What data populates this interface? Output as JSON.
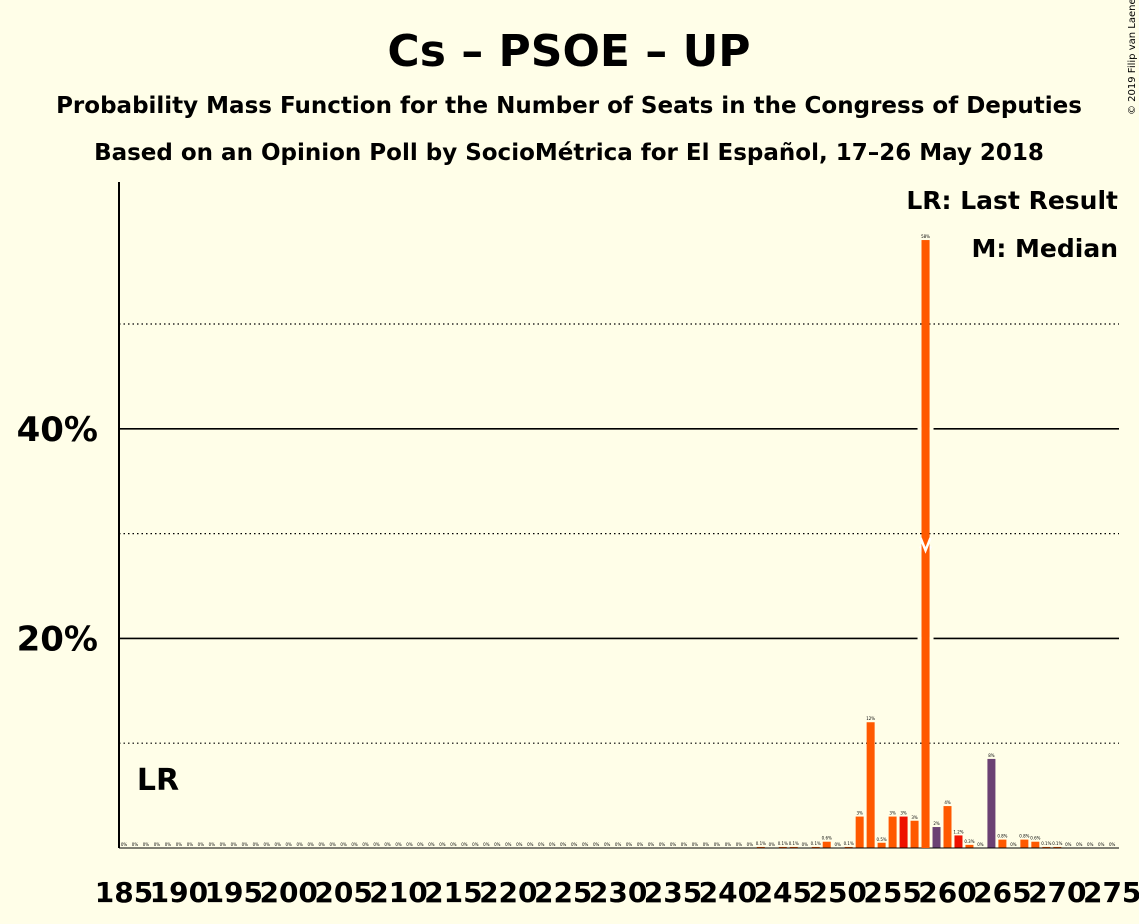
{
  "title": "Cs – PSOE – UP",
  "subtitle1": "Probability Mass Function for the Number of Seats in the Congress of Deputies",
  "subtitle2": "Based on an Opinion Poll by SocioMétrica for El Español, 17–26 May 2018",
  "copyright": "© 2019 Filip van Laenen",
  "legend": {
    "last_result": "LR: Last Result",
    "median": "M: Median"
  },
  "lr_label": "LR",
  "colors": {
    "background": "#FFFEE8",
    "cs": "#FF5900",
    "psoe": "#EE1100",
    "up": "#6B4173"
  },
  "chart_data": {
    "type": "bar",
    "x_range": [
      185,
      275
    ],
    "ylim": [
      0,
      60
    ],
    "y_ticks": [
      "20%",
      "40%"
    ],
    "x_ticks": [
      "185",
      "190",
      "195",
      "200",
      "205",
      "210",
      "215",
      "220",
      "225",
      "230",
      "235",
      "240",
      "245",
      "250",
      "255",
      "260",
      "265",
      "270",
      "275"
    ],
    "last_result": 186,
    "median": 258,
    "values": [
      {
        "seats": 185,
        "value": 0,
        "label": "0%"
      },
      {
        "seats": 186,
        "value": 0,
        "label": "0%"
      },
      {
        "seats": 187,
        "value": 0,
        "label": "0%"
      },
      {
        "seats": 188,
        "value": 0,
        "label": "0%"
      },
      {
        "seats": 189,
        "value": 0,
        "label": "0%"
      },
      {
        "seats": 190,
        "value": 0,
        "label": "0%"
      },
      {
        "seats": 191,
        "value": 0,
        "label": "0%"
      },
      {
        "seats": 192,
        "value": 0,
        "label": "0%"
      },
      {
        "seats": 193,
        "value": 0,
        "label": "0%"
      },
      {
        "seats": 194,
        "value": 0,
        "label": "0%"
      },
      {
        "seats": 195,
        "value": 0,
        "label": "0%"
      },
      {
        "seats": 196,
        "value": 0,
        "label": "0%"
      },
      {
        "seats": 197,
        "value": 0,
        "label": "0%"
      },
      {
        "seats": 198,
        "value": 0,
        "label": "0%"
      },
      {
        "seats": 199,
        "value": 0,
        "label": "0%"
      },
      {
        "seats": 200,
        "value": 0,
        "label": "0%"
      },
      {
        "seats": 201,
        "value": 0,
        "label": "0%"
      },
      {
        "seats": 202,
        "value": 0,
        "label": "0%"
      },
      {
        "seats": 203,
        "value": 0,
        "label": "0%"
      },
      {
        "seats": 204,
        "value": 0,
        "label": "0%"
      },
      {
        "seats": 205,
        "value": 0,
        "label": "0%"
      },
      {
        "seats": 206,
        "value": 0,
        "label": "0%"
      },
      {
        "seats": 207,
        "value": 0,
        "label": "0%"
      },
      {
        "seats": 208,
        "value": 0,
        "label": "0%"
      },
      {
        "seats": 209,
        "value": 0,
        "label": "0%"
      },
      {
        "seats": 210,
        "value": 0,
        "label": "0%"
      },
      {
        "seats": 211,
        "value": 0,
        "label": "0%"
      },
      {
        "seats": 212,
        "value": 0,
        "label": "0%"
      },
      {
        "seats": 213,
        "value": 0,
        "label": "0%"
      },
      {
        "seats": 214,
        "value": 0,
        "label": "0%"
      },
      {
        "seats": 215,
        "value": 0,
        "label": "0%"
      },
      {
        "seats": 216,
        "value": 0,
        "label": "0%"
      },
      {
        "seats": 217,
        "value": 0,
        "label": "0%"
      },
      {
        "seats": 218,
        "value": 0,
        "label": "0%"
      },
      {
        "seats": 219,
        "value": 0,
        "label": "0%"
      },
      {
        "seats": 220,
        "value": 0,
        "label": "0%"
      },
      {
        "seats": 221,
        "value": 0,
        "label": "0%"
      },
      {
        "seats": 222,
        "value": 0,
        "label": "0%"
      },
      {
        "seats": 223,
        "value": 0,
        "label": "0%"
      },
      {
        "seats": 224,
        "value": 0,
        "label": "0%"
      },
      {
        "seats": 225,
        "value": 0,
        "label": "0%"
      },
      {
        "seats": 226,
        "value": 0,
        "label": "0%"
      },
      {
        "seats": 227,
        "value": 0,
        "label": "0%"
      },
      {
        "seats": 228,
        "value": 0,
        "label": "0%"
      },
      {
        "seats": 229,
        "value": 0,
        "label": "0%"
      },
      {
        "seats": 230,
        "value": 0,
        "label": "0%"
      },
      {
        "seats": 231,
        "value": 0,
        "label": "0%"
      },
      {
        "seats": 232,
        "value": 0,
        "label": "0%"
      },
      {
        "seats": 233,
        "value": 0,
        "label": "0%"
      },
      {
        "seats": 234,
        "value": 0,
        "label": "0%"
      },
      {
        "seats": 235,
        "value": 0,
        "label": "0%"
      },
      {
        "seats": 236,
        "value": 0,
        "label": "0%"
      },
      {
        "seats": 237,
        "value": 0,
        "label": "0%"
      },
      {
        "seats": 238,
        "value": 0,
        "label": "0%"
      },
      {
        "seats": 239,
        "value": 0,
        "label": "0%"
      },
      {
        "seats": 240,
        "value": 0,
        "label": "0%"
      },
      {
        "seats": 241,
        "value": 0,
        "label": "0%"
      },
      {
        "seats": 242,
        "value": 0,
        "label": "0%"
      },
      {
        "seats": 243,
        "value": 0.1,
        "label": "0.1%"
      },
      {
        "seats": 244,
        "value": 0,
        "label": "0%"
      },
      {
        "seats": 245,
        "value": 0.1,
        "label": "0.1%"
      },
      {
        "seats": 246,
        "value": 0.1,
        "label": "0.1%"
      },
      {
        "seats": 247,
        "value": 0,
        "label": "0%"
      },
      {
        "seats": 248,
        "value": 0.1,
        "label": "0.1%"
      },
      {
        "seats": 249,
        "value": 0.6,
        "label": "0.6%"
      },
      {
        "seats": 250,
        "value": 0,
        "label": "0%"
      },
      {
        "seats": 251,
        "value": 0.1,
        "label": "0.1%"
      },
      {
        "seats": 252,
        "value": 3,
        "label": "3%"
      },
      {
        "seats": 253,
        "value": 12,
        "label": "12%"
      },
      {
        "seats": 254,
        "value": 0.5,
        "label": "0.5%"
      },
      {
        "seats": 255,
        "value": 3,
        "label": "3%"
      },
      {
        "seats": 256,
        "value": 3,
        "label": "3%"
      },
      {
        "seats": 257,
        "value": 2.6,
        "label": "3%"
      },
      {
        "seats": 258,
        "value": 58,
        "label": "58%"
      },
      {
        "seats": 259,
        "value": 2,
        "label": "2%"
      },
      {
        "seats": 260,
        "value": 4,
        "label": "4%"
      },
      {
        "seats": 261,
        "value": 1.2,
        "label": "1.2%"
      },
      {
        "seats": 262,
        "value": 0.3,
        "label": "0.3%"
      },
      {
        "seats": 263,
        "value": 0,
        "label": "0%"
      },
      {
        "seats": 264,
        "value": 8.5,
        "label": "8%"
      },
      {
        "seats": 265,
        "value": 0.8,
        "label": "0.8%"
      },
      {
        "seats": 266,
        "value": 0,
        "label": "0%"
      },
      {
        "seats": 267,
        "value": 0.8,
        "label": "0.8%"
      },
      {
        "seats": 268,
        "value": 0.6,
        "label": "0.6%"
      },
      {
        "seats": 269,
        "value": 0.1,
        "label": "0.1%"
      },
      {
        "seats": 270,
        "value": 0.1,
        "label": "0.1%"
      },
      {
        "seats": 271,
        "value": 0,
        "label": "0%"
      },
      {
        "seats": 272,
        "value": 0,
        "label": "0%"
      },
      {
        "seats": 273,
        "value": 0,
        "label": "0%"
      },
      {
        "seats": 274,
        "value": 0,
        "label": "0%"
      },
      {
        "seats": 275,
        "value": 0,
        "label": "0%"
      }
    ]
  }
}
